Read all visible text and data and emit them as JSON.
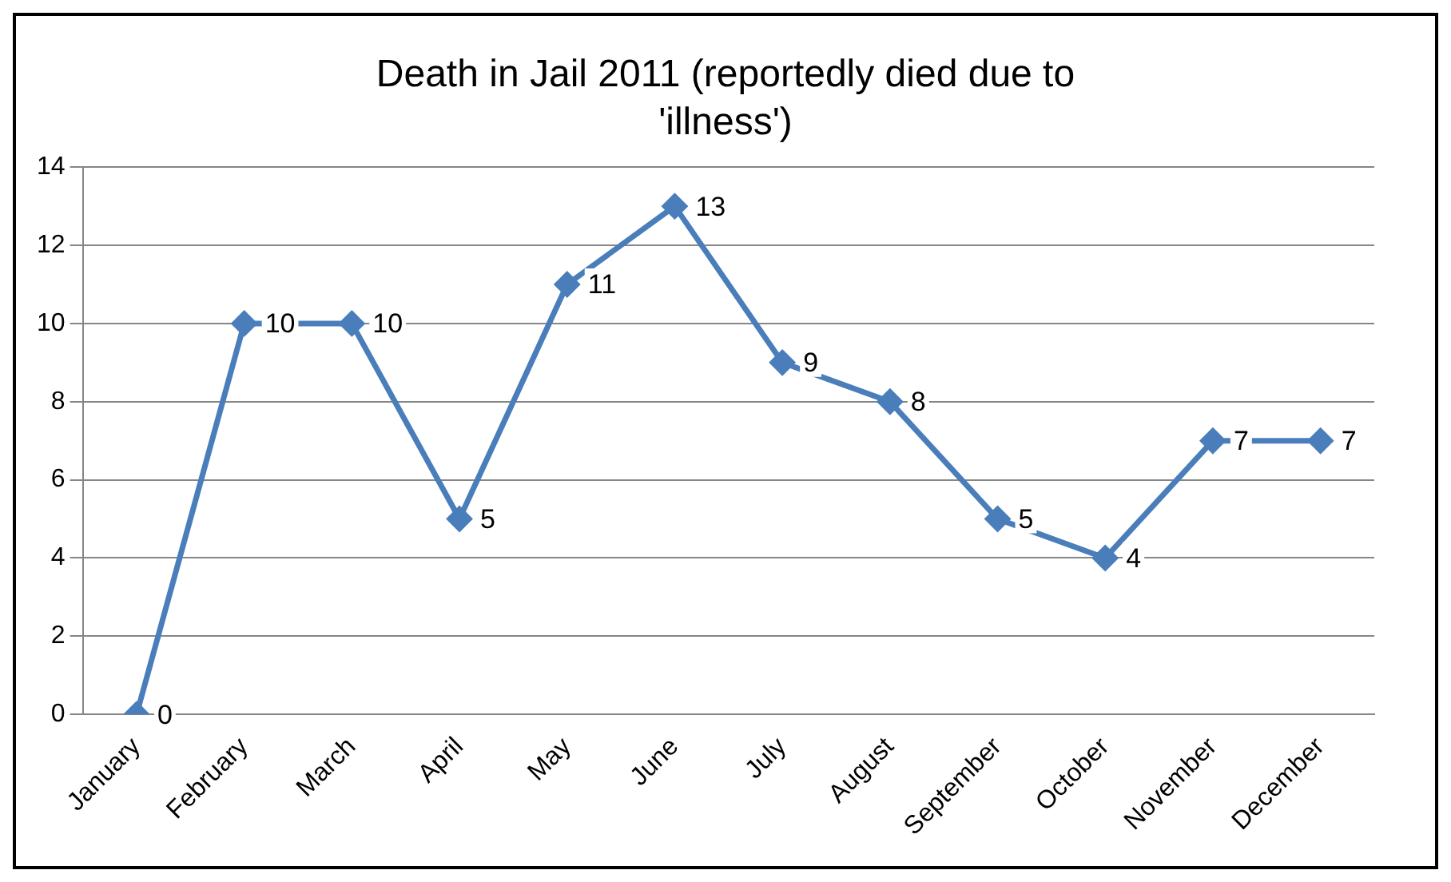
{
  "chart_data": {
    "type": "line",
    "title": "Death in Jail 2011 (reportedly died due to 'illness')",
    "categories": [
      "January",
      "February",
      "March",
      "April",
      "May",
      "June",
      "July",
      "August",
      "September",
      "October",
      "November",
      "December"
    ],
    "series": [
      {
        "color": "#4a7ebb",
        "values": [
          0,
          10,
          10,
          5,
          11,
          13,
          9,
          8,
          5,
          4,
          7,
          7
        ]
      }
    ],
    "ylim": [
      0,
      14
    ],
    "yticks": [
      0,
      2,
      4,
      6,
      8,
      10,
      12,
      14
    ],
    "grid": "y",
    "legend": false,
    "marker": "diamond",
    "line_style": "solid",
    "data_labels": true
  }
}
